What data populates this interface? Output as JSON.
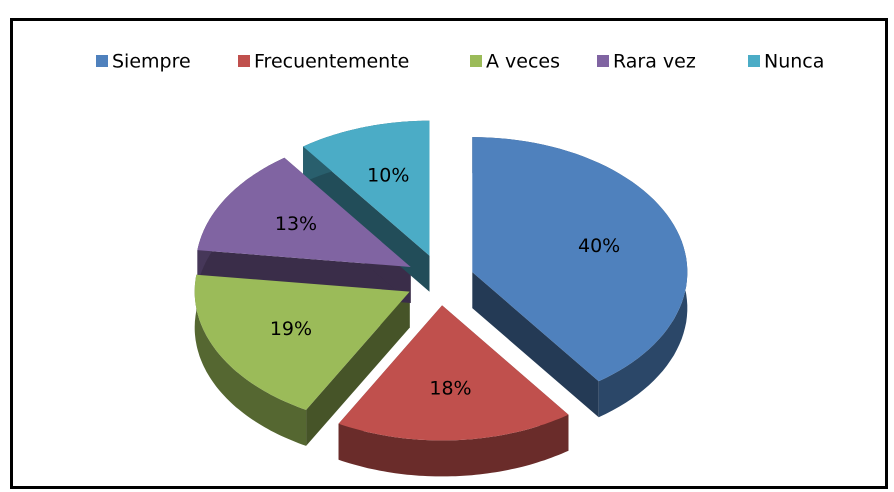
{
  "chart_data": {
    "type": "pie",
    "categories": [
      "Siempre",
      "Frecuentemente",
      "A veces",
      "Rara vez",
      "Nunca"
    ],
    "values": [
      40,
      18,
      19,
      13,
      10
    ],
    "value_labels": [
      "40%",
      "18%",
      "19%",
      "13%",
      "10%"
    ],
    "colors": [
      "#4f81bd",
      "#c0504d",
      "#9bbb59",
      "#8064a2",
      "#4bacc6"
    ],
    "legend": "top"
  }
}
